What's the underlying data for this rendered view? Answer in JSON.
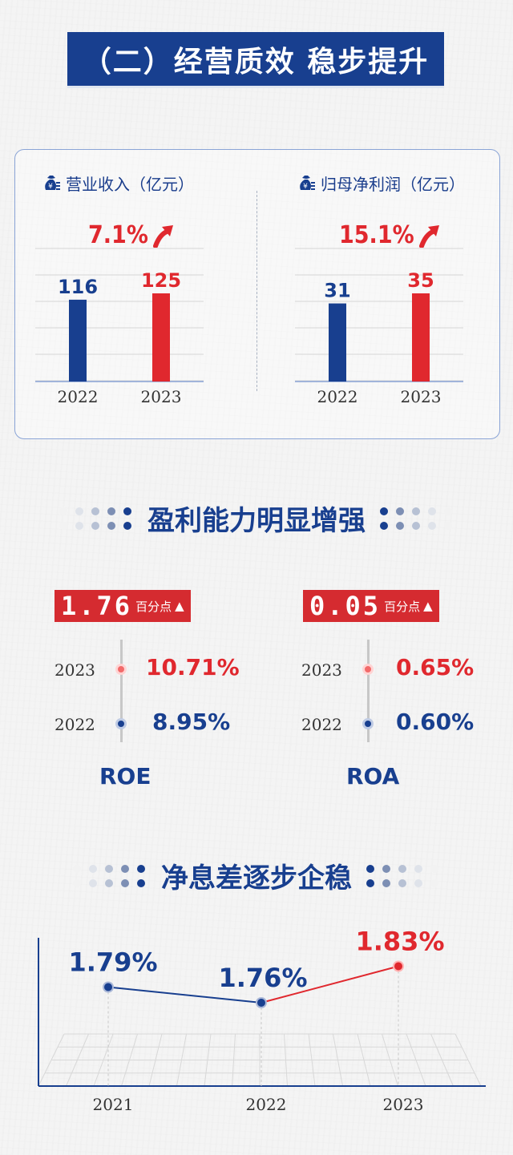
{
  "title": "（二）经营质效 稳步提升",
  "revenue": {
    "label": "营业收入（亿元）",
    "growth": "7.1%",
    "years": [
      "2022",
      "2023"
    ],
    "values": [
      "116",
      "125"
    ]
  },
  "profit": {
    "label": "归母净利润（亿元）",
    "growth": "15.1%",
    "years": [
      "2022",
      "2023"
    ],
    "values": [
      "31",
      "35"
    ]
  },
  "profitability": {
    "heading": "盈利能力明显增强",
    "roe": {
      "change": "1.76",
      "unit": "百分点",
      "arrow": "▲",
      "name": "ROE",
      "year_2023": "2023",
      "value_2023": "10.71%",
      "year_2022": "2022",
      "value_2022": "8.95%"
    },
    "roa": {
      "change": "0.05",
      "unit": "百分点",
      "arrow": "▲",
      "name": "ROA",
      "year_2023": "2023",
      "value_2023": "0.65%",
      "year_2022": "2022",
      "value_2022": "0.60%"
    }
  },
  "nim": {
    "heading": "净息差逐步企稳",
    "years": [
      "2021",
      "2022",
      "2023"
    ],
    "labels": [
      "1.79%",
      "1.76%",
      "1.83%"
    ]
  },
  "colors": {
    "navy": "#183f8f",
    "red": "#e0282e"
  },
  "chart_data": [
    {
      "type": "bar",
      "title": "营业收入（亿元）",
      "categories": [
        "2022",
        "2023"
      ],
      "values": [
        116,
        125
      ],
      "annotations": [
        "7.1%"
      ]
    },
    {
      "type": "bar",
      "title": "归母净利润（亿元）",
      "categories": [
        "2022",
        "2023"
      ],
      "values": [
        31,
        35
      ],
      "annotations": [
        "15.1%"
      ]
    },
    {
      "type": "line",
      "title": "净息差逐步企稳",
      "x": [
        "2021",
        "2022",
        "2023"
      ],
      "values": [
        1.79,
        1.76,
        1.83
      ]
    }
  ]
}
